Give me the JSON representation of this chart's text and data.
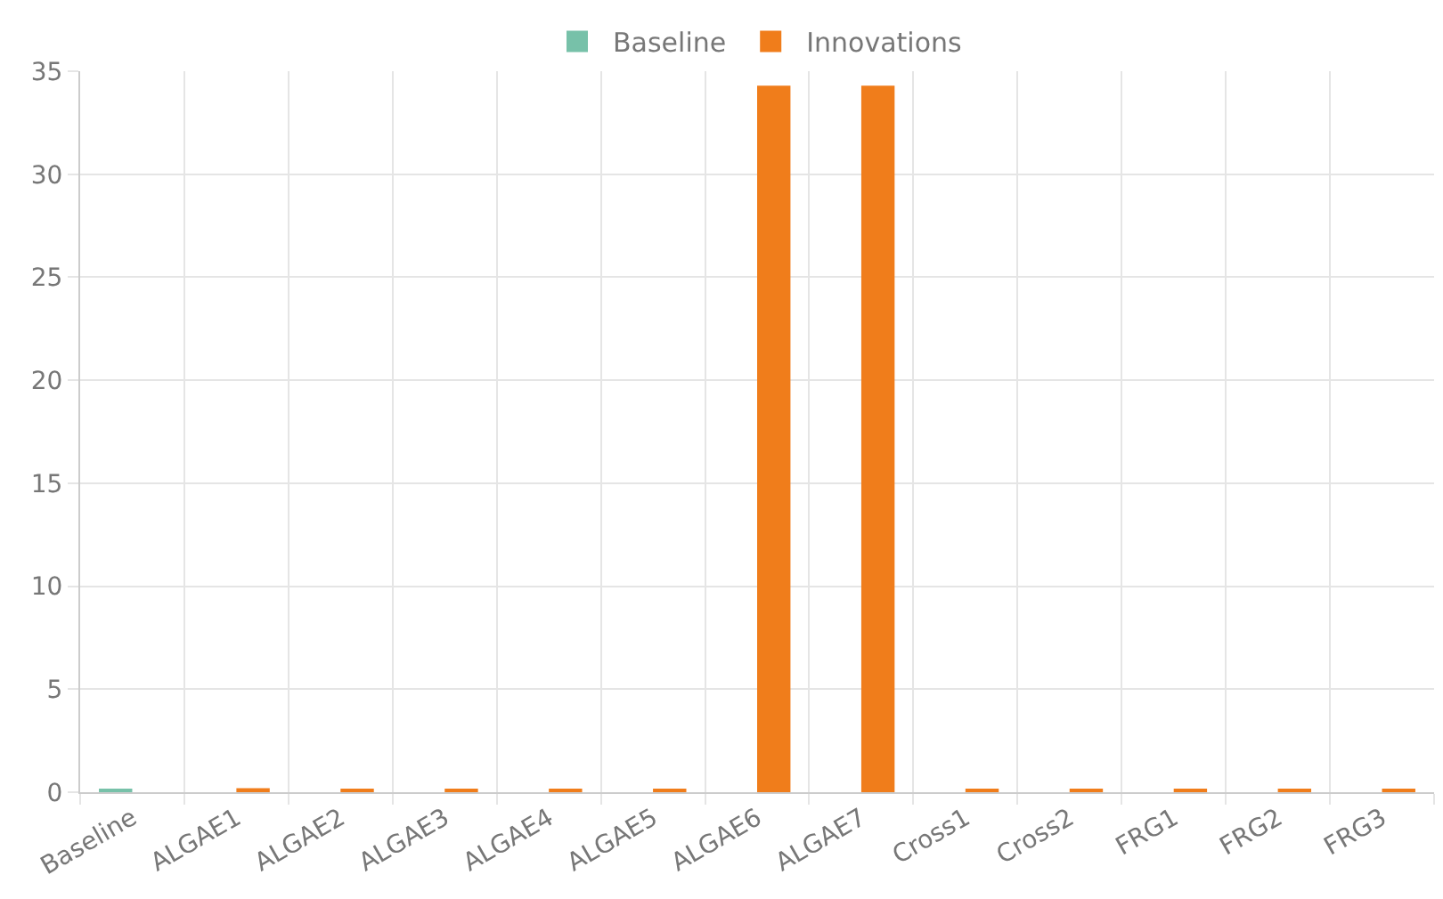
{
  "chart_data": {
    "type": "bar",
    "categories": [
      "Baseline",
      "ALGAE1",
      "ALGAE2",
      "ALGAE3",
      "ALGAE4",
      "ALGAE5",
      "ALGAE6",
      "ALGAE7",
      "Cross1",
      "Cross2",
      "FRG1",
      "FRG2",
      "FRG3"
    ],
    "series": [
      {
        "name": "Baseline",
        "color": "#77c1a9",
        "values": [
          0.1,
          null,
          null,
          null,
          null,
          null,
          null,
          null,
          null,
          null,
          null,
          null,
          null
        ]
      },
      {
        "name": "Innovations",
        "color": "#f07d1b",
        "values": [
          null,
          0.2,
          0.1,
          0.1,
          0.1,
          0.1,
          34.3,
          34.3,
          0.1,
          0.1,
          0.1,
          0.1,
          0.1
        ]
      }
    ],
    "ylim": [
      0,
      35
    ],
    "yticks": [
      0,
      5,
      10,
      15,
      20,
      25,
      30,
      35
    ],
    "grid": true,
    "legend": "top"
  }
}
